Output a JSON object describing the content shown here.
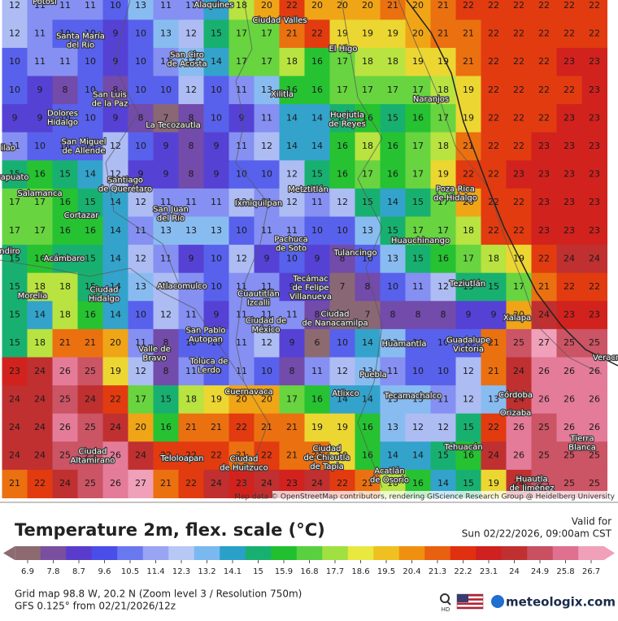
{
  "map": {
    "grid": [
      [
        12,
        11,
        11,
        11,
        10,
        13,
        11,
        11,
        14,
        18,
        20,
        22,
        20,
        20,
        20,
        21,
        20,
        21,
        22,
        22,
        22,
        22,
        22,
        22
      ],
      [
        12,
        11,
        10,
        10,
        9,
        10,
        13,
        12,
        15,
        17,
        17,
        21,
        22,
        19,
        19,
        19,
        20,
        21,
        21,
        22,
        22,
        22,
        22,
        22
      ],
      [
        10,
        11,
        11,
        10,
        9,
        10,
        11,
        13,
        14,
        17,
        17,
        18,
        16,
        17,
        18,
        18,
        19,
        19,
        21,
        22,
        22,
        22,
        23,
        23
      ],
      [
        10,
        9,
        8,
        10,
        8,
        10,
        10,
        12,
        10,
        11,
        13,
        16,
        16,
        17,
        17,
        17,
        17,
        18,
        19,
        22,
        22,
        22,
        22,
        23
      ],
      [
        9,
        9,
        10,
        10,
        9,
        8,
        7,
        8,
        10,
        9,
        11,
        14,
        14,
        15,
        16,
        15,
        16,
        17,
        19,
        22,
        22,
        22,
        23,
        23
      ],
      [
        11,
        10,
        10,
        10,
        12,
        10,
        9,
        8,
        9,
        11,
        12,
        14,
        14,
        16,
        18,
        16,
        17,
        18,
        21,
        22,
        22,
        23,
        23,
        23
      ],
      [
        15,
        16,
        15,
        14,
        12,
        9,
        9,
        8,
        9,
        10,
        10,
        12,
        15,
        16,
        17,
        16,
        17,
        19,
        22,
        22,
        23,
        23,
        23,
        23
      ],
      [
        17,
        17,
        16,
        15,
        14,
        12,
        11,
        11,
        11,
        12,
        11,
        12,
        11,
        12,
        15,
        14,
        15,
        17,
        20,
        22,
        22,
        23,
        23,
        23
      ],
      [
        17,
        17,
        16,
        16,
        14,
        11,
        13,
        13,
        13,
        10,
        11,
        11,
        10,
        10,
        13,
        15,
        17,
        17,
        18,
        22,
        22,
        23,
        23,
        23
      ],
      [
        15,
        16,
        15,
        15,
        14,
        12,
        11,
        9,
        10,
        12,
        9,
        10,
        9,
        8,
        10,
        13,
        15,
        16,
        17,
        18,
        19,
        22,
        24,
        24
      ],
      [
        15,
        18,
        18,
        15,
        14,
        13,
        12,
        11,
        10,
        11,
        11,
        9,
        9,
        7,
        8,
        10,
        11,
        12,
        15,
        15,
        17,
        21,
        22,
        22
      ],
      [
        15,
        14,
        18,
        16,
        14,
        10,
        12,
        11,
        9,
        11,
        11,
        11,
        8,
        7,
        7,
        8,
        8,
        8,
        9,
        9,
        20,
        24,
        23,
        23
      ],
      [
        15,
        18,
        21,
        21,
        20,
        11,
        8,
        10,
        10,
        11,
        12,
        9,
        6,
        10,
        14,
        13,
        10,
        10,
        10,
        21,
        25,
        27,
        25,
        25
      ],
      [
        23,
        24,
        26,
        25,
        19,
        12,
        8,
        11,
        10,
        11,
        10,
        8,
        11,
        12,
        13,
        11,
        10,
        10,
        12,
        21,
        24,
        26,
        26,
        26
      ],
      [
        24,
        24,
        25,
        24,
        22,
        17,
        15,
        18,
        19,
        20,
        20,
        17,
        16,
        14,
        14,
        13,
        13,
        11,
        12,
        13,
        24,
        26,
        26,
        26
      ],
      [
        24,
        24,
        26,
        25,
        24,
        20,
        16,
        21,
        21,
        22,
        21,
        21,
        19,
        19,
        16,
        13,
        12,
        12,
        15,
        22,
        26,
        25,
        26,
        26
      ],
      [
        24,
        24,
        25,
        25,
        26,
        24,
        22,
        22,
        22,
        21,
        22,
        21,
        21,
        19,
        16,
        14,
        14,
        15,
        16,
        24,
        26,
        25,
        25,
        25
      ],
      [
        21,
        22,
        24,
        25,
        26,
        27,
        21,
        22,
        24,
        23,
        24,
        23,
        24,
        22,
        21,
        18,
        16,
        14,
        15,
        19,
        24,
        25,
        25,
        25
      ]
    ],
    "cities": [
      [
        "Potosí"
      ],
      [
        "Alaquines"
      ],
      [
        "Ciudad Valles"
      ],
      [
        "Santa María",
        "del Río"
      ],
      [
        "San Ciro",
        "de Acosta"
      ],
      [
        "El Higo"
      ],
      [
        "San Luis",
        "de la Paz"
      ],
      [
        "Xilitla"
      ],
      [
        "Huejutla",
        "de Reyes"
      ],
      [
        "Naranjos"
      ],
      [
        "Dolores",
        "Hidalgo"
      ],
      [
        "La Tecozautla"
      ],
      [
        "San Miguel",
        "de Allende"
      ],
      [
        "ilao"
      ],
      [
        "rapuato"
      ],
      [
        "Santiago",
        "de Querétaro"
      ],
      [
        "Salamanca"
      ],
      [
        "Metztitlán"
      ],
      [
        "Poza Rica",
        "de Hidalgo"
      ],
      [
        "Cortazar"
      ],
      [
        "San Juan",
        "del Río"
      ],
      [
        "Ixmiquilpan"
      ],
      [
        "Pachuca",
        "de Soto"
      ],
      [
        "Huauchinango"
      ],
      [
        "Tulancingo"
      ],
      [
        "ndiro"
      ],
      [
        "Acámbaro"
      ],
      [
        "Atlacomulco"
      ],
      [
        "Tecámac",
        "de Felipe",
        "Villanueva"
      ],
      [
        "Teziutlán"
      ],
      [
        "Morelia"
      ],
      [
        "Ciudad",
        "Hidalgo"
      ],
      [
        "Cuautitlán",
        "Izcalli"
      ],
      [
        "Ciudad de",
        "México"
      ],
      [
        "Ciudad",
        "de Nanacamilpa"
      ],
      [
        "Xalapa"
      ],
      [
        "San Pablo",
        "Autopan"
      ],
      [
        "Valle de",
        "Bravo"
      ],
      [
        "Huamantla"
      ],
      [
        "Guadalupe",
        "Victoria"
      ],
      [
        "Toluca de",
        "Lerdo"
      ],
      [
        "Veracr"
      ],
      [
        "Puebla"
      ],
      [
        "Atlixco"
      ],
      [
        "Tecamachalco"
      ],
      [
        "Cuernavaca"
      ],
      [
        "Córdoba"
      ],
      [
        "Orizaba"
      ],
      [
        "Ciudad",
        "Altamirano"
      ],
      [
        "Teloloapan"
      ],
      [
        "Ciudad",
        "de Huitzuco"
      ],
      [
        "Ciudad",
        "de Chiautla",
        "de Tapia"
      ],
      [
        "Tehuacán"
      ],
      [
        "Tierra",
        "Blanca"
      ],
      [
        "Acatlán",
        "de Osorio"
      ],
      [
        "Huautla",
        "de Jiménez"
      ]
    ],
    "attribution": "Map data © OpenStreetMap contributors, rendering GIScience Research Group @ Heidelberg University"
  },
  "footer": {
    "title": "Temperature 2m, flex. scale (°C)",
    "valid_label": "Valid for",
    "valid_time": "Sun 02/22/2026, 09:00am CST",
    "grid_info": "Grid map 98.8 W, 20.2 N (Zoom level 3 / Resolution 750m)",
    "model_info": "GFS 0.125° from  02/21/2026/12z",
    "hd": "HD",
    "brand": "meteologix.com"
  },
  "legend": {
    "ticks": [
      6.9,
      7.8,
      8.7,
      9.6,
      10.5,
      11.4,
      12.3,
      13.2,
      14.1,
      15,
      15.9,
      16.8,
      17.7,
      18.6,
      19.5,
      20.4,
      21.3,
      22.2,
      23.1,
      24,
      24.9,
      25.8,
      26.7
    ],
    "colors": [
      "#8c6a70",
      "#7a4fa0",
      "#5a3ccc",
      "#4a4ee8",
      "#6a78f0",
      "#9aa4f4",
      "#b8c8f4",
      "#7ab8f0",
      "#2aa0c8",
      "#18b070",
      "#20c030",
      "#58d040",
      "#a0e040",
      "#e8e840",
      "#f0c020",
      "#f09010",
      "#e86010",
      "#e03010",
      "#d02020",
      "#c03030",
      "#c85060",
      "#e07090",
      "#f0a0b8"
    ]
  }
}
